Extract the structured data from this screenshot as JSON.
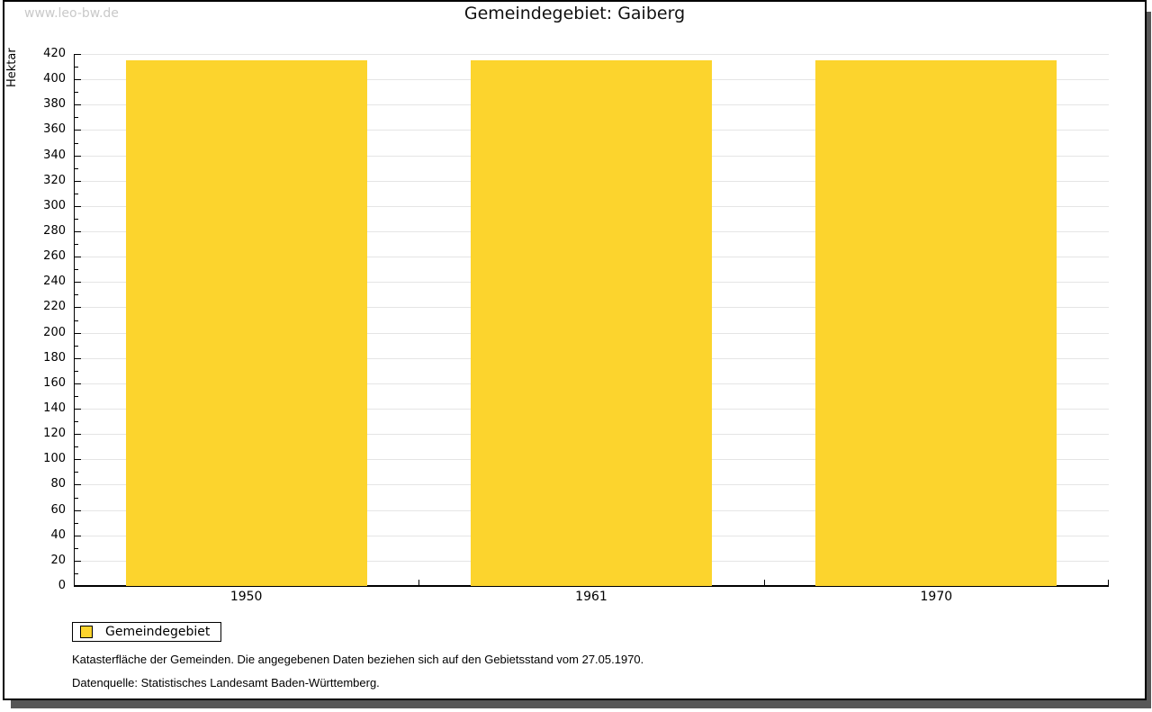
{
  "watermark": "www.leo-bw.de",
  "title": "Gemeindegebiet: Gaiberg",
  "chart_data": {
    "type": "bar",
    "title": "Gemeindegebiet: Gaiberg",
    "categories": [
      "1950",
      "1961",
      "1970"
    ],
    "series": [
      {
        "name": "Gemeindegebiet",
        "values": [
          415,
          415,
          415
        ]
      }
    ],
    "xlabel": "",
    "ylabel": "Hektar",
    "ylim": [
      0,
      420
    ],
    "ytick_major": 20,
    "ytick_minor": 10,
    "grid": true,
    "bar_color": "#FCD42D",
    "legend_position": "bottom-left"
  },
  "legend": {
    "label": "Gemeindegebiet",
    "swatch_color": "#FCD42D"
  },
  "footnotes": [
    "Katasterfläche der Gemeinden. Die angegebenen Daten beziehen sich auf den Gebietsstand vom 27.05.1970.",
    "Datenquelle: Statistisches Landesamt Baden-Württemberg."
  ],
  "colors": {
    "bar": "#FCD42D",
    "gridline": "#e5e5e5",
    "watermark": "#c9c9c9",
    "frame_border": "#000000",
    "frame_shadow": "#575757"
  }
}
